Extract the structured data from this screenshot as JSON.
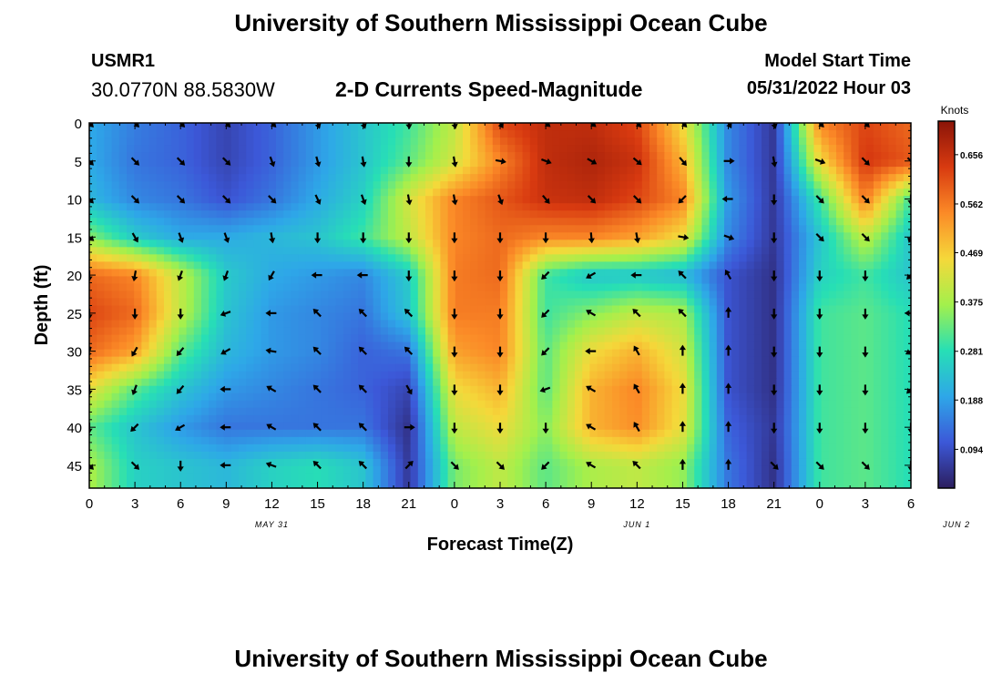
{
  "header": {
    "title": "University of Southern Mississippi Ocean Cube",
    "station_id": "USMR1",
    "coordinates": "30.0770N  88.5830W",
    "subtitle": "2-D Currents Speed-Magnitude",
    "model_start_label": "Model Start Time",
    "model_start_value": "05/31/2022 Hour 03"
  },
  "footer": {
    "title": "University of Southern Mississippi Ocean Cube"
  },
  "chart_data": {
    "type": "heatmap",
    "xlabel": "Forecast Time(Z)",
    "ylabel": "Depth (ft)",
    "x_tick_labels": [
      "0",
      "3",
      "6",
      "9",
      "12",
      "15",
      "18",
      "21",
      "0",
      "3",
      "6",
      "9",
      "12",
      "15",
      "18",
      "21",
      "0",
      "3",
      "6"
    ],
    "date_labels": [
      {
        "label": "MAY 31",
        "hour": 12
      },
      {
        "label": "JUN 1",
        "hour": 36
      },
      {
        "label": "JUN 2",
        "hour": 57
      }
    ],
    "x_range_hours": [
      0,
      54
    ],
    "y_ticks": [
      0,
      5,
      10,
      15,
      20,
      25,
      30,
      35,
      40,
      45
    ],
    "y_range_ft": [
      0,
      48
    ],
    "y_reversed": true,
    "colorbar": {
      "label": "Knots",
      "ticks": [
        0.094,
        0.188,
        0.281,
        0.375,
        0.469,
        0.562,
        0.656
      ],
      "range": [
        0.02,
        0.72
      ],
      "colors": [
        "#2c1e5e",
        "#3c58d8",
        "#2ea7e8",
        "#27dfb5",
        "#a3f04c",
        "#f5d83a",
        "#fb8a27",
        "#d83a10",
        "#8a1408"
      ]
    },
    "arrow_times_hours": [
      0,
      3,
      6,
      9,
      12,
      15,
      18,
      21,
      24,
      27,
      30,
      33,
      36,
      39,
      42,
      45,
      48,
      51,
      54
    ],
    "arrow_depths_ft": [
      0,
      5,
      10,
      15,
      20,
      25,
      30,
      35,
      40,
      45
    ],
    "speed_knots": [
      [
        0.2,
        0.15,
        0.12,
        0.08,
        0.12,
        0.18,
        0.24,
        0.3,
        0.4,
        0.62,
        0.66,
        0.66,
        0.62,
        0.45,
        0.16,
        0.06,
        0.55,
        0.62,
        0.58
      ],
      [
        0.2,
        0.14,
        0.12,
        0.08,
        0.12,
        0.18,
        0.24,
        0.32,
        0.42,
        0.55,
        0.66,
        0.68,
        0.65,
        0.5,
        0.16,
        0.06,
        0.45,
        0.64,
        0.6
      ],
      [
        0.22,
        0.16,
        0.14,
        0.1,
        0.14,
        0.2,
        0.26,
        0.42,
        0.55,
        0.6,
        0.65,
        0.66,
        0.62,
        0.55,
        0.18,
        0.06,
        0.3,
        0.56,
        0.3
      ],
      [
        0.35,
        0.25,
        0.2,
        0.2,
        0.22,
        0.24,
        0.3,
        0.4,
        0.55,
        0.58,
        0.55,
        0.55,
        0.52,
        0.45,
        0.16,
        0.06,
        0.24,
        0.4,
        0.24
      ],
      [
        0.58,
        0.55,
        0.4,
        0.25,
        0.2,
        0.18,
        0.16,
        0.25,
        0.56,
        0.58,
        0.3,
        0.24,
        0.24,
        0.22,
        0.1,
        0.05,
        0.26,
        0.3,
        0.24
      ],
      [
        0.62,
        0.58,
        0.4,
        0.24,
        0.18,
        0.16,
        0.14,
        0.24,
        0.56,
        0.56,
        0.3,
        0.35,
        0.4,
        0.38,
        0.1,
        0.05,
        0.3,
        0.32,
        0.28
      ],
      [
        0.58,
        0.52,
        0.32,
        0.22,
        0.18,
        0.16,
        0.12,
        0.14,
        0.52,
        0.55,
        0.32,
        0.45,
        0.5,
        0.42,
        0.1,
        0.05,
        0.3,
        0.32,
        0.28
      ],
      [
        0.44,
        0.32,
        0.24,
        0.18,
        0.16,
        0.14,
        0.12,
        0.08,
        0.45,
        0.5,
        0.32,
        0.5,
        0.55,
        0.45,
        0.1,
        0.05,
        0.3,
        0.32,
        0.28
      ],
      [
        0.32,
        0.24,
        0.18,
        0.14,
        0.14,
        0.14,
        0.14,
        0.05,
        0.4,
        0.45,
        0.35,
        0.5,
        0.54,
        0.44,
        0.12,
        0.06,
        0.3,
        0.32,
        0.28
      ],
      [
        0.38,
        0.26,
        0.24,
        0.22,
        0.26,
        0.28,
        0.24,
        0.06,
        0.34,
        0.4,
        0.32,
        0.38,
        0.4,
        0.36,
        0.14,
        0.05,
        0.3,
        0.32,
        0.28
      ]
    ],
    "direction_deg": [
      [
        135,
        135,
        135,
        135,
        135,
        160,
        160,
        175,
        170,
        150,
        130,
        130,
        135,
        135,
        150,
        165,
        135,
        135,
        135
      ],
      [
        135,
        135,
        135,
        135,
        160,
        165,
        170,
        180,
        170,
        100,
        110,
        120,
        130,
        140,
        90,
        170,
        110,
        135,
        135
      ],
      [
        135,
        135,
        135,
        135,
        135,
        155,
        160,
        170,
        170,
        160,
        140,
        135,
        135,
        225,
        270,
        180,
        135,
        135,
        180
      ],
      [
        130,
        150,
        160,
        160,
        170,
        180,
        180,
        180,
        180,
        180,
        180,
        175,
        170,
        100,
        110,
        180,
        135,
        135,
        200
      ],
      [
        180,
        190,
        200,
        200,
        210,
        270,
        270,
        180,
        180,
        180,
        225,
        240,
        270,
        315,
        330,
        180,
        180,
        180,
        225
      ],
      [
        180,
        180,
        180,
        250,
        270,
        315,
        315,
        315,
        180,
        180,
        225,
        300,
        315,
        315,
        0,
        180,
        180,
        180,
        270
      ],
      [
        200,
        210,
        220,
        240,
        280,
        315,
        315,
        315,
        180,
        180,
        225,
        270,
        330,
        0,
        0,
        180,
        180,
        180,
        240
      ],
      [
        180,
        200,
        220,
        270,
        300,
        315,
        315,
        150,
        180,
        180,
        250,
        300,
        330,
        0,
        0,
        180,
        180,
        180,
        225
      ],
      [
        180,
        225,
        240,
        270,
        300,
        315,
        315,
        90,
        180,
        180,
        180,
        300,
        330,
        0,
        0,
        180,
        180,
        180,
        180
      ],
      [
        135,
        135,
        180,
        270,
        290,
        315,
        315,
        45,
        135,
        135,
        225,
        300,
        315,
        0,
        0,
        135,
        135,
        135,
        180
      ]
    ]
  }
}
